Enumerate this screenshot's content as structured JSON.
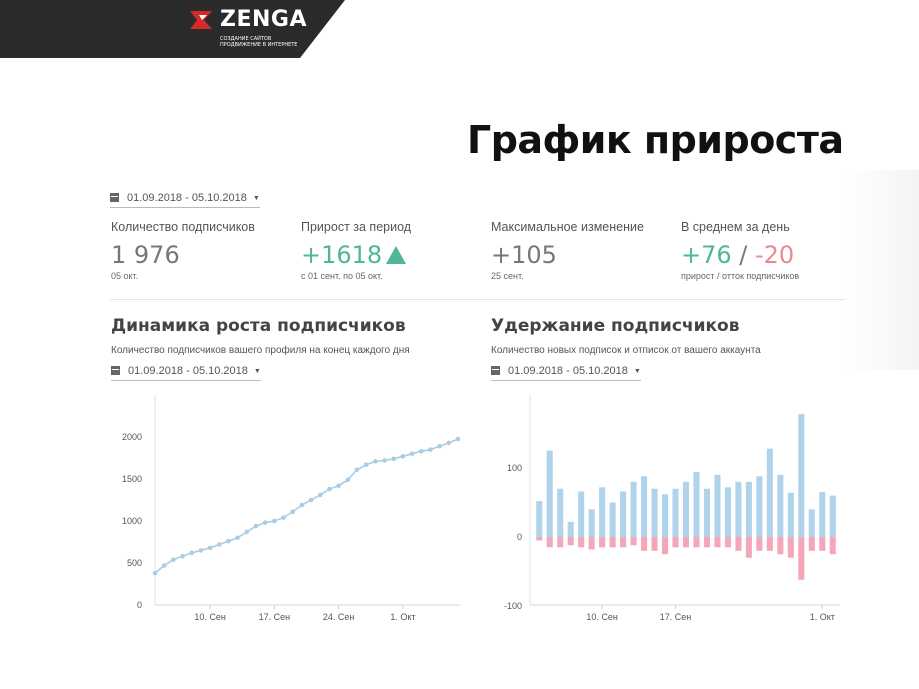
{
  "header": {
    "logo_text": "ZENGA",
    "logo_tagline_1": "создание сайтов",
    "logo_tagline_2": "продвижение в интернете"
  },
  "slide_title": "График прироста",
  "top_date_range": "01.09.2018 - 05.10.2018",
  "stats": [
    {
      "label": "Количество подписчиков",
      "value": "1 976",
      "sub": "05 окт."
    },
    {
      "label": "Прирост за период",
      "value": "+1618",
      "sub": "с 01 сент. по 05 окт."
    },
    {
      "label": "Максимальное изменение",
      "value": "+105",
      "sub": "25 сент."
    },
    {
      "label": "В среднем за день",
      "value_plus": "+76",
      "value_sep": " / ",
      "value_minus": "-20",
      "sub": "прирост / отток подписчиков"
    }
  ],
  "colors": {
    "green": "#4fb69a",
    "red": "#e88b8f",
    "blue": "#b0d3ec",
    "pink": "#f4a7b9",
    "line": "#a8cde6"
  },
  "growth_section": {
    "title": "Динамика роста подписчиков",
    "subtitle": "Количество подписчиков вашего профиля на конец каждого дня",
    "date_range": "01.09.2018 - 05.10.2018"
  },
  "retention_section": {
    "title": "Удержание подписчиков",
    "subtitle": "Количество новых подписок и отписок от вашего аккаунта",
    "date_range": "01.09.2018 - 05.10.2018"
  },
  "chart_data": [
    {
      "type": "line",
      "ylim": [
        0,
        2000
      ],
      "y_ticks": [
        0,
        500,
        1000,
        1500,
        2000
      ],
      "x_ticks": [
        {
          "label": "10. Сен",
          "index": 6
        },
        {
          "label": "17. Сен",
          "index": 13
        },
        {
          "label": "24. Сен",
          "index": 20
        },
        {
          "label": "1. Окт",
          "index": 27
        }
      ],
      "grid": false,
      "series": [
        {
          "values": [
            380,
            470,
            540,
            580,
            620,
            650,
            680,
            720,
            760,
            800,
            870,
            940,
            980,
            1000,
            1040,
            1110,
            1190,
            1250,
            1310,
            1380,
            1420,
            1490,
            1610,
            1670,
            1710,
            1720,
            1740,
            1770,
            1800,
            1830,
            1850,
            1890,
            1930,
            1976
          ]
        }
      ]
    },
    {
      "type": "bar",
      "ylim": [
        -110,
        180
      ],
      "y_ticks": [
        -100,
        0,
        100
      ],
      "x_ticks": [
        {
          "label": "10. Сен",
          "index": 6
        },
        {
          "label": "17. Сен",
          "index": 13
        },
        {
          "label": "1. Окт",
          "index": 27
        }
      ],
      "grid": false,
      "series": [
        {
          "values": [
            52,
            125,
            70,
            22,
            66,
            40,
            72,
            50,
            66,
            80,
            88,
            70,
            62,
            70,
            80,
            94,
            70,
            90,
            72,
            80,
            80,
            88,
            128,
            90,
            64,
            178,
            40,
            65,
            60
          ]
        },
        {
          "values": [
            -5,
            -15,
            -15,
            -12,
            -15,
            -18,
            -15,
            -15,
            -15,
            -12,
            -20,
            -20,
            -25,
            -15,
            -15,
            -15,
            -15,
            -15,
            -15,
            -20,
            -30,
            -20,
            -20,
            -25,
            -30,
            -62,
            -20,
            -20,
            -25
          ]
        }
      ]
    }
  ]
}
